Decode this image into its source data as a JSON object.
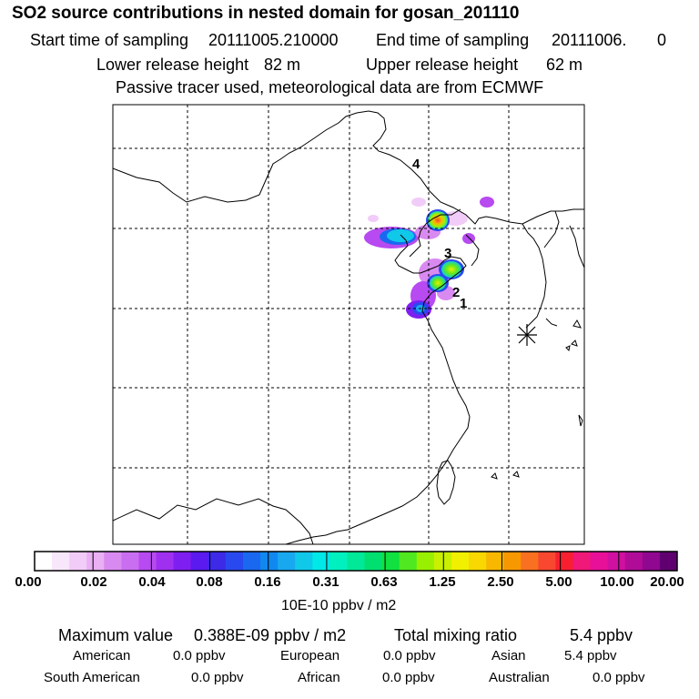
{
  "title": "SO2 source contributions in nested domain for gosan_201110",
  "sampling": {
    "start_label": "Start time of sampling",
    "start_value": "20111005.210000",
    "end_label": "End time of sampling",
    "end_value": "20111006.",
    "end_suffix": "0"
  },
  "release": {
    "lower_label": "Lower release height",
    "lower_value": "82 m",
    "upper_label": "Upper release height",
    "upper_value": "62 m"
  },
  "note": "Passive tracer used, meteorological data are from ECMWF",
  "markers": [
    {
      "label": "4"
    },
    {
      "label": "3"
    },
    {
      "label": "2"
    },
    {
      "label": "1"
    }
  ],
  "colorbar": {
    "ticks": [
      "0.00",
      "0.02",
      "0.04",
      "0.08",
      "0.16",
      "0.31",
      "0.63",
      "1.25",
      "2.50",
      "5.00",
      "10.00",
      "20.00"
    ],
    "unit": "10E-10 ppbv / m2",
    "colors": [
      "#ffffff",
      "#f8e6fb",
      "#f2ccf8",
      "#e9b0f4",
      "#d98af0",
      "#c96ef0",
      "#b74af0",
      "#a030f0",
      "#7f1ef0",
      "#5a1af0",
      "#3c2ae8",
      "#2a48f0",
      "#1a68f0",
      "#1088f0",
      "#18a8f0",
      "#10c8e8",
      "#00e8e8",
      "#00f0c0",
      "#00e898",
      "#00e070",
      "#10e040",
      "#50e820",
      "#98f000",
      "#c8f000",
      "#f0f000",
      "#f8d800",
      "#f8b800",
      "#f89800",
      "#f87020",
      "#f84830",
      "#f82030",
      "#f01878",
      "#e81098",
      "#d010a0",
      "#b00c98",
      "#900890",
      "#600070"
    ]
  },
  "summary": {
    "max_label": "Maximum value",
    "max_value": "0.388E-09 ppbv / m2",
    "total_label": "Total mixing ratio",
    "total_value": "5.4 ppbv",
    "regions_row1": [
      {
        "name": "American",
        "value": "0.0 ppbv"
      },
      {
        "name": "European",
        "value": "0.0 ppbv"
      },
      {
        "name": "Asian",
        "value": "5.4 ppbv"
      }
    ],
    "regions_row2": [
      {
        "name": "South American",
        "value": "0.0 ppbv"
      },
      {
        "name": "African",
        "value": "0.0 ppbv"
      },
      {
        "name": "Australian",
        "value": "0.0 ppbv"
      }
    ]
  }
}
